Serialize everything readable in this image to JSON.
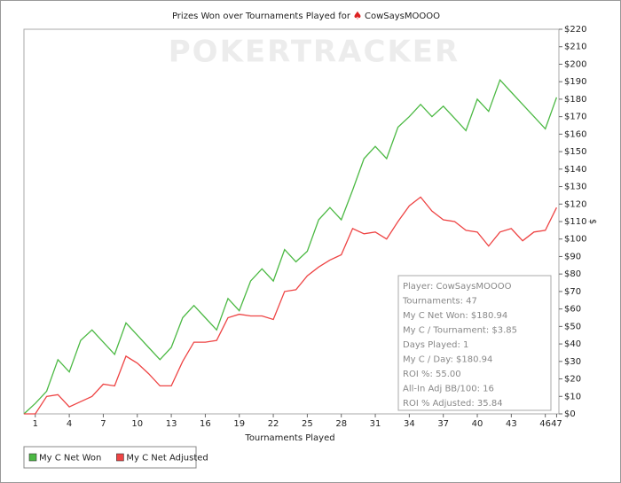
{
  "chart_data": {
    "type": "line",
    "title": "Prizes Won over Tournaments Played for",
    "player": "CowSaysMOOOO",
    "watermark": "POKERTRACKER",
    "x_label": "Tournaments Played",
    "y_label": "$",
    "x": [
      0,
      1,
      2,
      3,
      4,
      5,
      6,
      7,
      8,
      9,
      10,
      11,
      12,
      13,
      14,
      15,
      16,
      17,
      18,
      19,
      20,
      21,
      22,
      23,
      24,
      25,
      26,
      27,
      28,
      29,
      30,
      31,
      32,
      33,
      34,
      35,
      36,
      37,
      38,
      39,
      40,
      41,
      42,
      43,
      44,
      45,
      46,
      47
    ],
    "series": [
      {
        "name": "My C Net Won",
        "color": "#4cb944",
        "values": [
          0,
          6,
          13,
          31,
          24,
          42,
          48,
          41,
          34,
          52,
          45,
          38,
          31,
          38,
          55,
          62,
          55,
          48,
          66,
          59,
          76,
          83,
          76,
          94,
          87,
          93,
          111,
          118,
          111,
          128,
          146,
          153,
          146,
          164,
          170,
          177,
          170,
          176,
          169,
          162,
          180,
          173,
          191,
          184,
          177,
          170,
          163,
          181
        ]
      },
      {
        "name": "My C Net Adjusted",
        "color": "#ee4444",
        "values": [
          0,
          0,
          10,
          11,
          4,
          7,
          10,
          17,
          16,
          33,
          29,
          23,
          16,
          16,
          30,
          41,
          41,
          42,
          55,
          57,
          56,
          56,
          54,
          70,
          71,
          79,
          84,
          88,
          91,
          106,
          103,
          104,
          100,
          110,
          119,
          124,
          116,
          111,
          110,
          105,
          104,
          96,
          104,
          106,
          99,
          104,
          105,
          118
        ]
      }
    ],
    "xlim": [
      0,
      47.2
    ],
    "xticks": [
      1,
      4,
      7,
      10,
      13,
      16,
      19,
      22,
      25,
      28,
      31,
      34,
      37,
      40,
      43,
      46,
      47
    ],
    "ylim": [
      0,
      220
    ],
    "yticks": [
      {
        "value": 0,
        "label": "$0"
      },
      {
        "value": 10,
        "label": "$10"
      },
      {
        "value": 20,
        "label": "$20"
      },
      {
        "value": 30,
        "label": "$30"
      },
      {
        "value": 40,
        "label": "$40"
      },
      {
        "value": 50,
        "label": "$50"
      },
      {
        "value": 60,
        "label": "$60"
      },
      {
        "value": 70,
        "label": "$70"
      },
      {
        "value": 80,
        "label": "$80"
      },
      {
        "value": 90,
        "label": "$90"
      },
      {
        "value": 100,
        "label": "$100"
      },
      {
        "value": 110,
        "label": "$110"
      },
      {
        "value": 120,
        "label": "$120"
      },
      {
        "value": 130,
        "label": "$130"
      },
      {
        "value": 140,
        "label": "$140"
      },
      {
        "value": 150,
        "label": "$150"
      },
      {
        "value": 160,
        "label": "$160"
      },
      {
        "value": 170,
        "label": "$170"
      },
      {
        "value": 180,
        "label": "$180"
      },
      {
        "value": 190,
        "label": "$190"
      },
      {
        "value": 200,
        "label": "$200"
      },
      {
        "value": 210,
        "label": "$210"
      },
      {
        "value": 220,
        "label": "$220"
      }
    ],
    "info_box": [
      "Player: CowSaysMOOOO",
      "Tournaments: 47",
      "My C Net Won: $180.94",
      "My C / Tournament: $3.85",
      "Days Played: 1",
      "My C / Day: $180.94",
      "ROI %: 55.00",
      "All-In Adj BB/100: 16",
      "ROI % Adjusted: 35.84"
    ]
  }
}
